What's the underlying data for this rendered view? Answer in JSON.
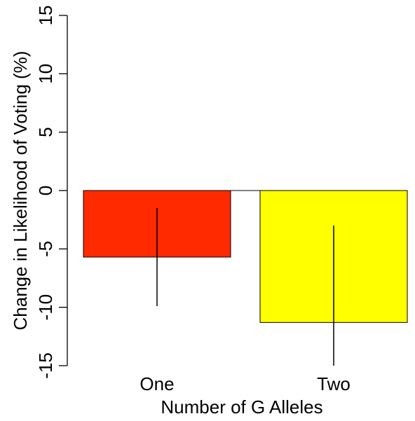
{
  "chart_data": {
    "type": "bar",
    "categories": [
      "One",
      "Two"
    ],
    "values": [
      -5.7,
      -11.3
    ],
    "error_low": [
      -9.9,
      -15.0
    ],
    "error_high": [
      -1.5,
      -3.0
    ],
    "colors": [
      "#ff2a00",
      "#ffff00"
    ],
    "xlabel": "Number of G Alleles",
    "ylabel": "Change in Likelihood of Voting (%)",
    "ylim": [
      -15,
      15
    ],
    "yticks": [
      -15,
      -10,
      -5,
      0,
      5,
      10,
      15
    ],
    "grid": false,
    "legend": "none"
  }
}
